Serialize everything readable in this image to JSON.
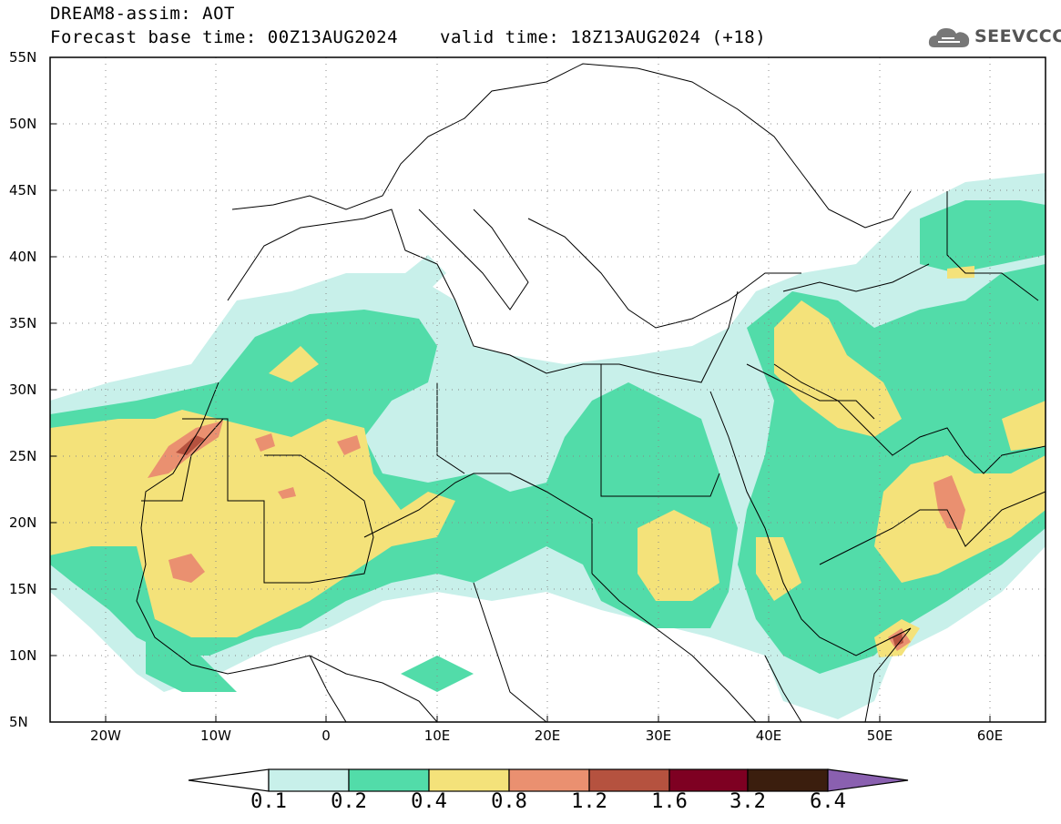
{
  "header": {
    "model_title": "DREAM8-assim: AOT",
    "base_time": "Forecast base time: 00Z13AUG2024",
    "valid_time": "valid time: 18Z13AUG2024 (+18)"
  },
  "logo": {
    "text": "SEEVCCC",
    "icon": "cloud-logo-icon",
    "color": "#6a6a6a"
  },
  "map": {
    "lon_range": [
      -25,
      65
    ],
    "lat_range": [
      5,
      55
    ],
    "lat_labels": [
      "55N",
      "50N",
      "45N",
      "40N",
      "35N",
      "30N",
      "25N",
      "20N",
      "15N",
      "10N",
      "5N"
    ],
    "lon_labels": [
      "20W",
      "10W",
      "0",
      "10E",
      "20E",
      "30E",
      "40E",
      "50E",
      "60E"
    ]
  },
  "colorbar": {
    "labels": [
      "0.1",
      "0.2",
      "0.4",
      "0.8",
      "1.2",
      "1.6",
      "3.2",
      "6.4"
    ],
    "colors": [
      "#c8f0ea",
      "#52dca9",
      "#f4e27a",
      "#ea9070",
      "#b5523f",
      "#7e0022",
      "#3b1e0e"
    ],
    "under_color": "#ffffff",
    "over_color": "#8a60b0"
  }
}
